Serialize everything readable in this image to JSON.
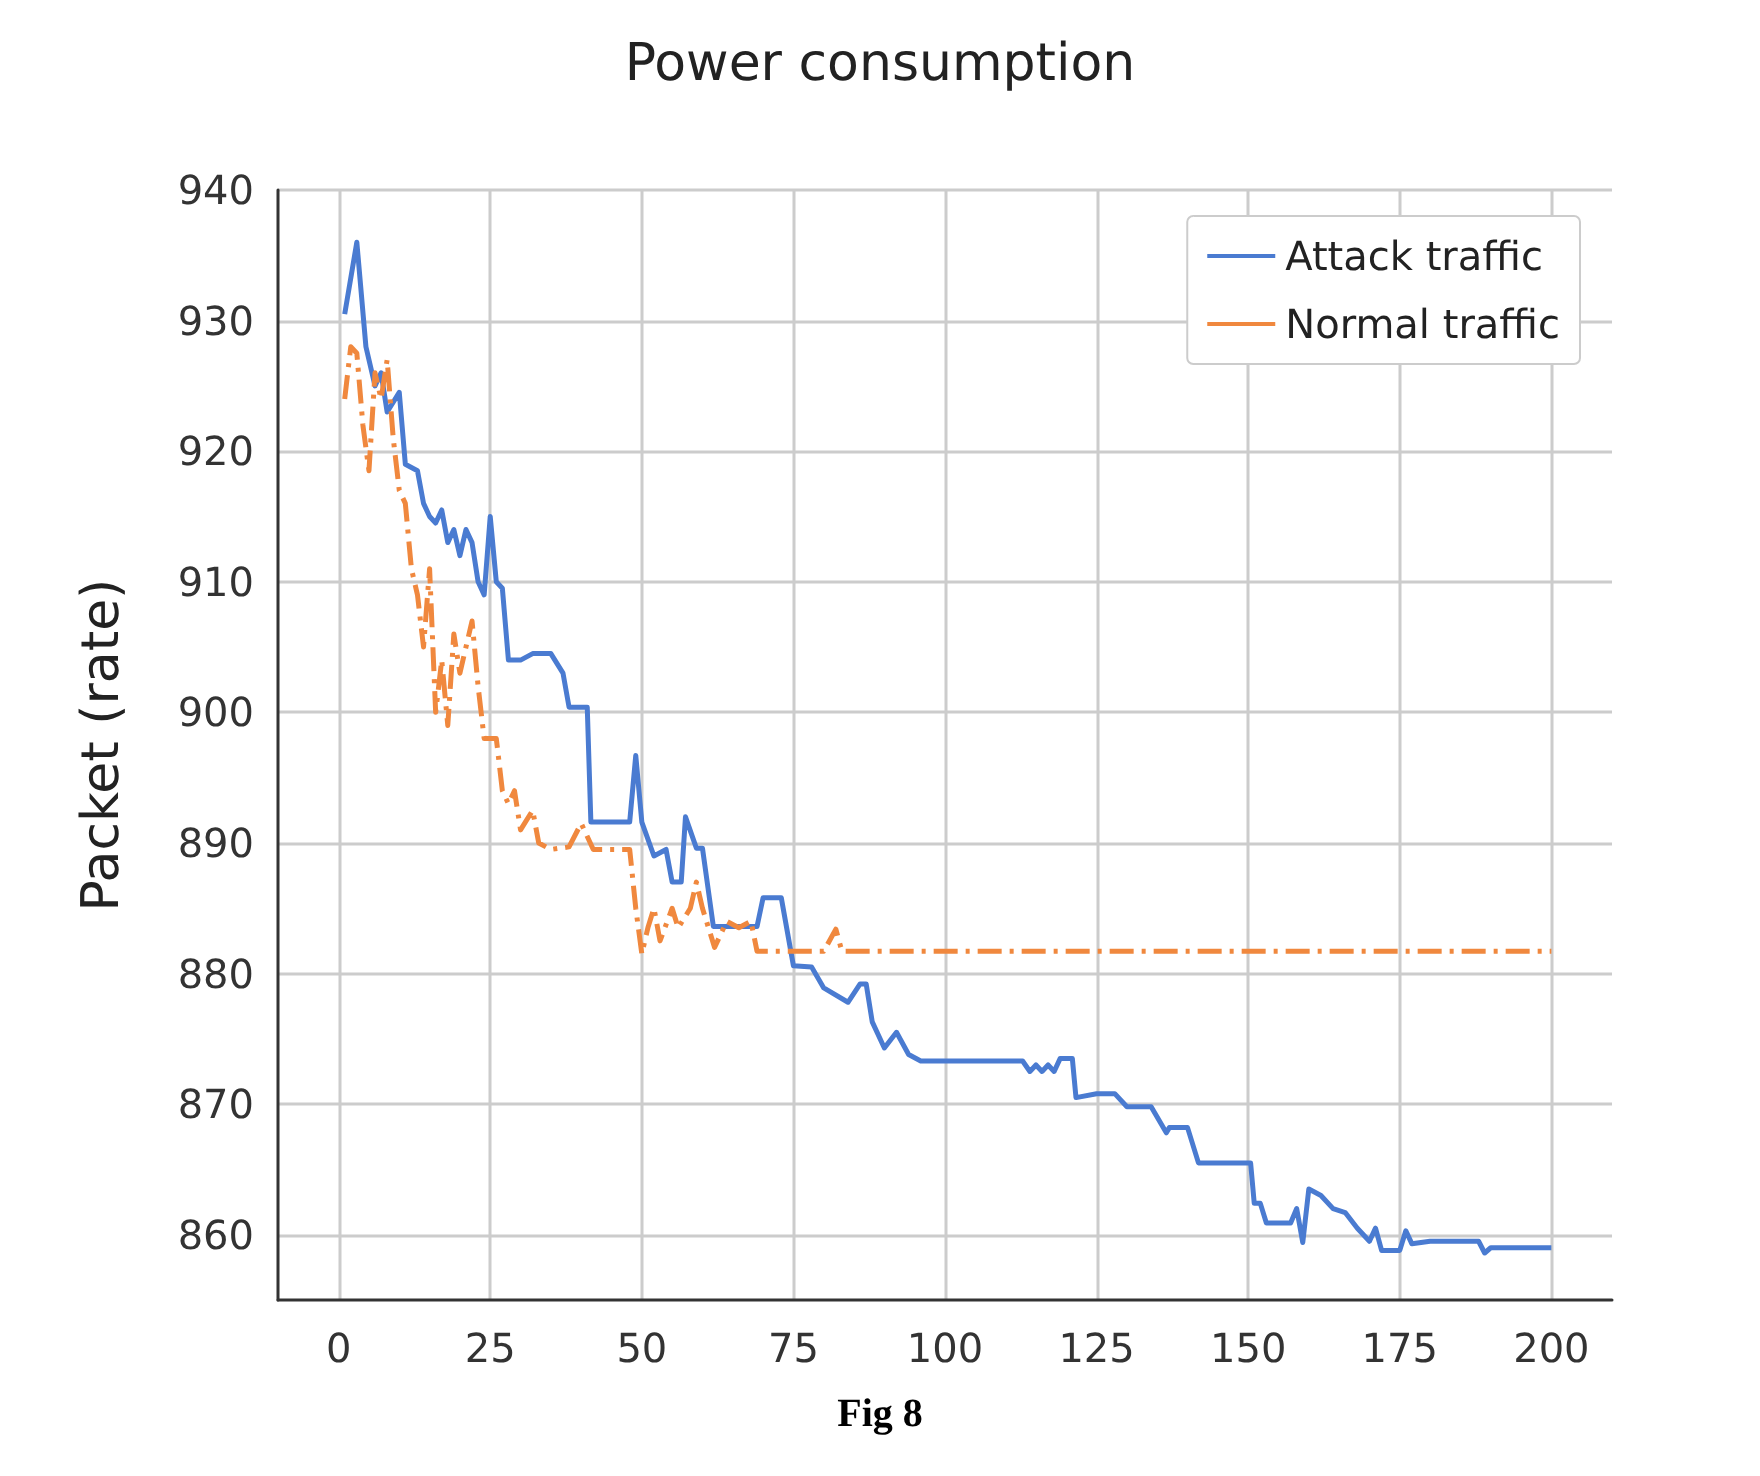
{
  "chart_data": {
    "type": "line",
    "title": "Power consumption",
    "ylabel": "Packet (rate)",
    "annotations": [
      "Fig 8"
    ],
    "xlim": [
      -10,
      210
    ],
    "xticks": [
      0,
      25,
      50,
      75,
      100,
      125,
      150,
      175,
      200
    ],
    "ylim": [
      855,
      940
    ],
    "yticks": [
      860,
      870,
      880,
      890,
      900,
      910,
      920,
      930,
      940
    ],
    "grid": true,
    "legend": "top right",
    "marker": "none",
    "series": [
      {
        "name": "Attack traffic",
        "color": "#4a7bd1",
        "line_style": "solid",
        "x": [
          1,
          3,
          4.5,
          6,
          7,
          8,
          10,
          11,
          13,
          14,
          15,
          16,
          17,
          18,
          19,
          20,
          21,
          22,
          23,
          24,
          25,
          26,
          27,
          28,
          30,
          32,
          35,
          37,
          38,
          41,
          41.6,
          48,
          49,
          50,
          52,
          54,
          55,
          56.5,
          57.2,
          59,
          60,
          61.8,
          69,
          70,
          73,
          75,
          78,
          80,
          84,
          86,
          87,
          88,
          90,
          92,
          94,
          96,
          103,
          112.8,
          114,
          115,
          116,
          117,
          118,
          119,
          121,
          121.6,
          125,
          128,
          130,
          134,
          136.5,
          137,
          140,
          141.8,
          150.4,
          151,
          152,
          153,
          157,
          158,
          159,
          160,
          162,
          164,
          166,
          168,
          170,
          171,
          172,
          175,
          176,
          177,
          180,
          188,
          189,
          190,
          200
        ],
        "values": [
          930.5,
          936,
          928,
          925,
          926,
          923,
          924.5,
          919,
          918.5,
          916,
          915,
          914.5,
          915.5,
          913,
          914,
          912,
          914,
          913,
          910,
          909,
          915,
          910,
          909.5,
          904,
          904,
          904.5,
          904.5,
          903,
          900.4,
          900.4,
          891.6,
          891.6,
          896.7,
          891.6,
          889,
          889.5,
          887,
          887,
          892,
          889.6,
          889.6,
          883.6,
          883.6,
          885.8,
          885.8,
          880.6,
          880.5,
          878.9,
          877.8,
          879.2,
          879.2,
          876.3,
          874.3,
          875.5,
          873.8,
          873.3,
          873.3,
          873.3,
          872.5,
          873,
          872.5,
          873,
          872.5,
          873.5,
          873.5,
          870.5,
          870.8,
          870.8,
          869.8,
          869.8,
          867.8,
          868.2,
          868.2,
          865.5,
          865.5,
          862.4,
          862.4,
          860.9,
          860.9,
          862,
          859.4,
          863.5,
          863,
          862,
          861.7,
          860.5,
          859.5,
          860.5,
          858.8,
          858.8,
          860.3,
          859.3,
          859.5,
          859.5,
          858.6,
          859,
          859
        ]
      },
      {
        "name": "Normal traffic",
        "color": "#f0883e",
        "line_style": "dashed",
        "x": [
          1,
          2,
          3,
          4,
          5,
          6,
          7,
          8,
          9,
          10,
          11,
          12,
          13,
          14,
          15,
          16,
          17,
          18,
          19,
          20,
          22,
          23,
          24,
          26,
          27,
          28,
          29,
          30,
          32,
          33,
          35,
          38,
          40,
          42,
          48,
          49,
          50,
          51,
          52,
          53,
          55,
          56,
          58,
          59,
          60,
          61,
          62,
          64,
          66,
          68,
          69,
          80,
          82,
          83,
          200
        ],
        "values": [
          924,
          928,
          927.5,
          922,
          918.5,
          926,
          924,
          927,
          921,
          917,
          916,
          911,
          909,
          905,
          911,
          900,
          904,
          899,
          906,
          903,
          907,
          902,
          898,
          898,
          894,
          893,
          894,
          891,
          892.5,
          890,
          889.5,
          889.7,
          891.5,
          889.5,
          889.5,
          885,
          881.5,
          883.5,
          885,
          882.5,
          885,
          883.5,
          885,
          887,
          885,
          883.5,
          882,
          884,
          883.5,
          884,
          881.7,
          881.7,
          883.4,
          881.7,
          881.7
        ]
      }
    ]
  }
}
